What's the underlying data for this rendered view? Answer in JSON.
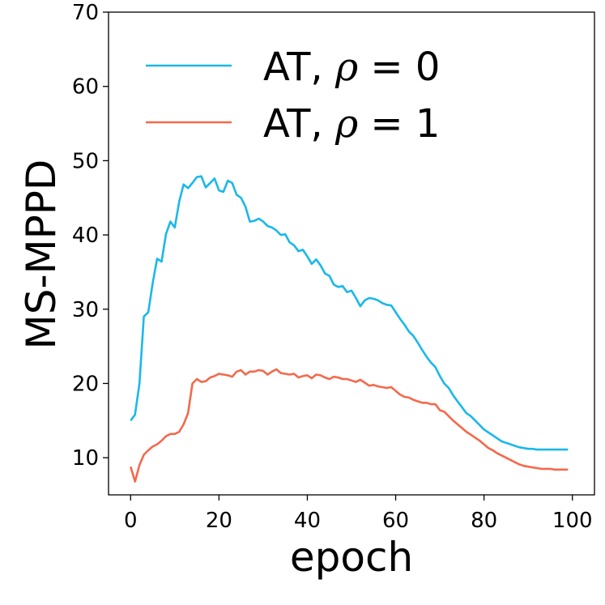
{
  "chart_data": {
    "type": "line",
    "title": "",
    "xlabel": "epoch",
    "ylabel": "MS-MPPD",
    "xlim": [
      -5,
      105
    ],
    "ylim": [
      5,
      70
    ],
    "xticks": [
      0,
      20,
      40,
      60,
      80,
      100
    ],
    "yticks": [
      10,
      20,
      30,
      40,
      50,
      60,
      70
    ],
    "grid": false,
    "legend_position": "top-left",
    "series": [
      {
        "name": "AT, ρ = 0",
        "label_prefix": "AT, ",
        "label_symbol": "ρ",
        "label_suffix": " = 0",
        "color": "#1ab8ea",
        "x": [
          0,
          1,
          2,
          3,
          4,
          5,
          6,
          7,
          8,
          9,
          10,
          11,
          12,
          13,
          14,
          15,
          16,
          17,
          18,
          19,
          20,
          21,
          22,
          23,
          24,
          25,
          26,
          27,
          28,
          29,
          30,
          31,
          32,
          33,
          34,
          35,
          36,
          37,
          38,
          39,
          40,
          41,
          42,
          43,
          44,
          45,
          46,
          47,
          48,
          49,
          50,
          51,
          52,
          53,
          54,
          55,
          56,
          57,
          58,
          59,
          60,
          61,
          62,
          63,
          64,
          65,
          66,
          67,
          68,
          69,
          70,
          71,
          72,
          73,
          74,
          75,
          76,
          77,
          78,
          79,
          80,
          81,
          82,
          83,
          84,
          85,
          86,
          87,
          88,
          89,
          90,
          91,
          92,
          93,
          94,
          95,
          96,
          97,
          98,
          99
        ],
        "y": [
          15.0,
          15.8,
          20.0,
          29.0,
          29.6,
          33.5,
          36.8,
          36.4,
          40.1,
          41.8,
          41.0,
          44.5,
          46.8,
          46.3,
          47.0,
          47.8,
          47.9,
          46.4,
          47.0,
          47.6,
          46.0,
          45.8,
          47.3,
          47.0,
          45.4,
          45.0,
          43.8,
          41.8,
          41.9,
          42.2,
          41.8,
          41.2,
          41.0,
          40.6,
          40.0,
          40.1,
          39.0,
          38.6,
          37.8,
          38.0,
          37.1,
          36.1,
          36.7,
          35.9,
          34.8,
          34.5,
          33.3,
          33.0,
          33.1,
          32.3,
          32.5,
          31.5,
          30.4,
          31.2,
          31.5,
          31.4,
          31.2,
          30.8,
          30.6,
          30.5,
          29.6,
          28.7,
          27.9,
          27.0,
          26.4,
          25.5,
          24.5,
          23.6,
          22.8,
          22.2,
          21.0,
          20.0,
          19.4,
          18.4,
          17.6,
          16.8,
          16.0,
          15.6,
          15.0,
          14.4,
          13.8,
          13.4,
          13.0,
          12.6,
          12.2,
          12.0,
          11.8,
          11.6,
          11.4,
          11.3,
          11.2,
          11.2,
          11.1,
          11.1,
          11.1,
          11.1,
          11.1,
          11.1,
          11.1,
          11.1
        ],
        "x_end": 99
      },
      {
        "name": "AT, ρ = 1",
        "label_prefix": "AT, ",
        "label_symbol": "ρ",
        "label_suffix": " = 1",
        "color": "#f4694b",
        "x": [
          0,
          1,
          2,
          3,
          4,
          5,
          6,
          7,
          8,
          9,
          10,
          11,
          12,
          13,
          14,
          15,
          16,
          17,
          18,
          19,
          20,
          21,
          22,
          23,
          24,
          25,
          26,
          27,
          28,
          29,
          30,
          31,
          32,
          33,
          34,
          35,
          36,
          37,
          38,
          39,
          40,
          41,
          42,
          43,
          44,
          45,
          46,
          47,
          48,
          49,
          50,
          51,
          52,
          53,
          54,
          55,
          56,
          57,
          58,
          59,
          60,
          61,
          62,
          63,
          64,
          65,
          66,
          67,
          68,
          69,
          70,
          71,
          72,
          73,
          74,
          75,
          76,
          77,
          78,
          79,
          80,
          81,
          82,
          83,
          84,
          85,
          86,
          87,
          88,
          89,
          90,
          91,
          92,
          93,
          94,
          95,
          96,
          97,
          98,
          99
        ],
        "y": [
          8.8,
          6.8,
          9.0,
          10.4,
          11.0,
          11.5,
          11.8,
          12.3,
          12.9,
          13.2,
          13.2,
          13.5,
          14.5,
          16.0,
          20.0,
          20.6,
          20.2,
          20.3,
          20.8,
          21.0,
          21.3,
          21.2,
          21.1,
          20.9,
          21.6,
          21.8,
          21.2,
          21.6,
          21.6,
          21.8,
          21.7,
          21.2,
          21.6,
          21.9,
          21.4,
          21.3,
          21.2,
          21.3,
          20.8,
          21.0,
          21.1,
          20.7,
          21.2,
          21.1,
          20.8,
          20.6,
          20.9,
          20.8,
          20.6,
          20.6,
          20.4,
          20.2,
          20.5,
          20.1,
          19.7,
          19.8,
          19.6,
          19.5,
          19.4,
          19.5,
          19.0,
          18.5,
          18.2,
          18.1,
          17.8,
          17.6,
          17.4,
          17.4,
          17.2,
          17.2,
          16.4,
          16.2,
          15.6,
          15.0,
          14.5,
          14.0,
          13.5,
          13.1,
          12.7,
          12.3,
          11.8,
          11.3,
          11.0,
          10.6,
          10.3,
          10.0,
          9.7,
          9.4,
          9.1,
          8.9,
          8.8,
          8.7,
          8.6,
          8.5,
          8.5,
          8.5,
          8.4,
          8.4,
          8.4,
          8.4
        ]
      }
    ]
  }
}
